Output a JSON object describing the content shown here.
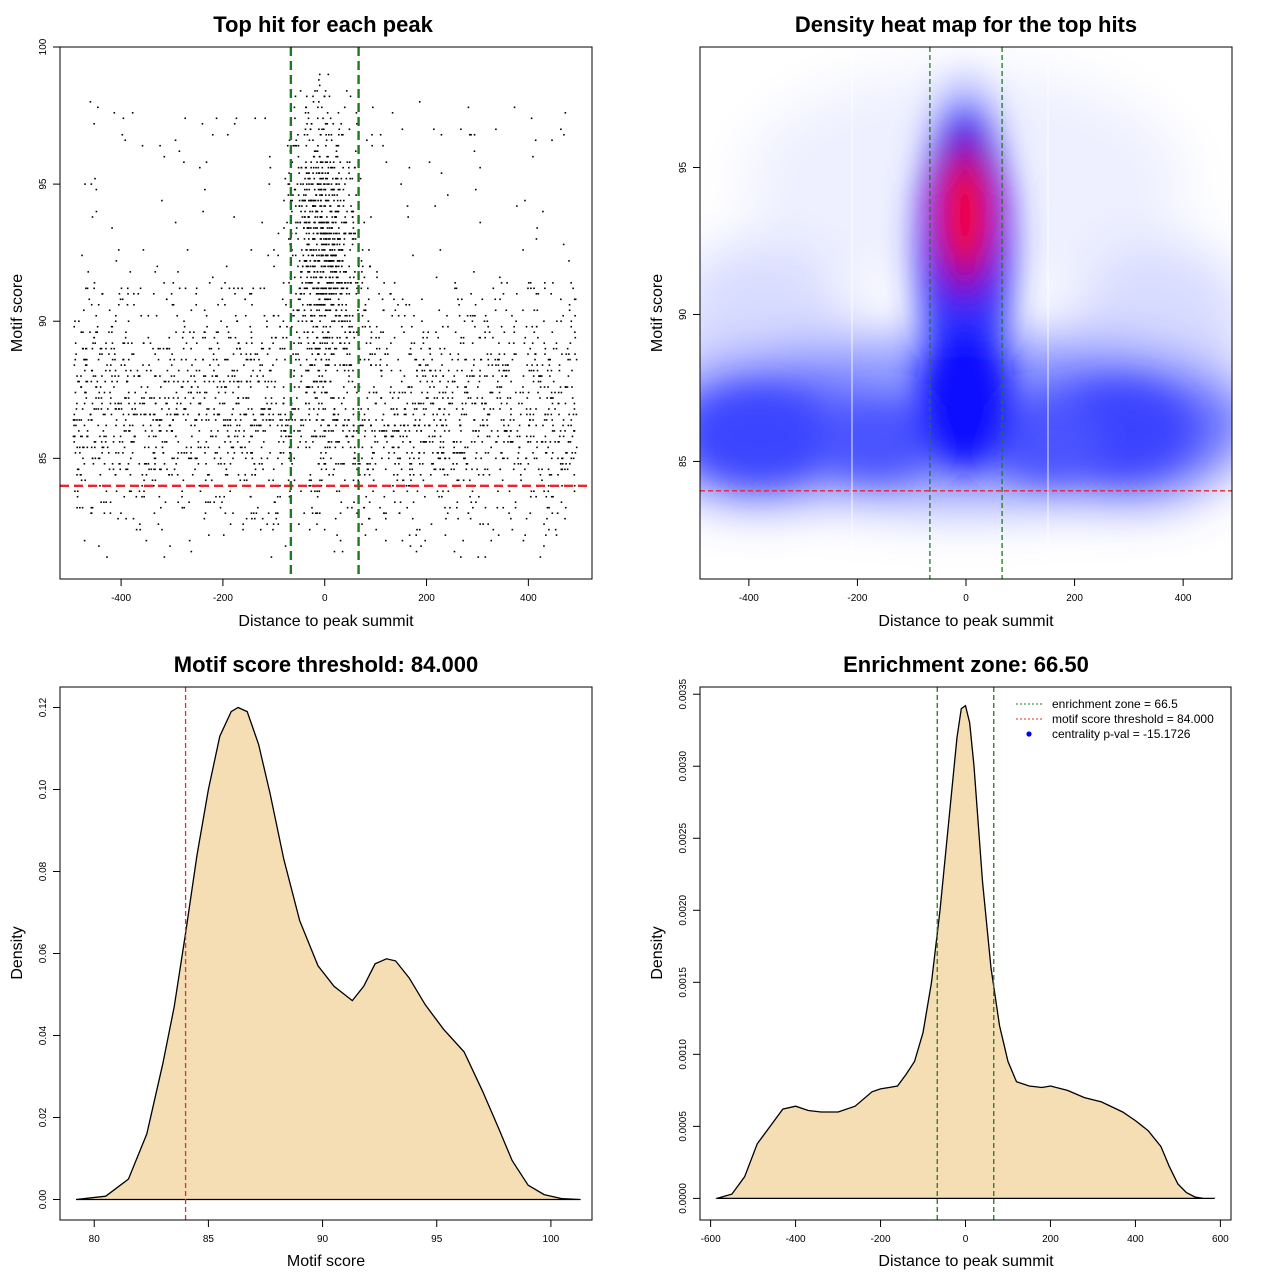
{
  "chart_data": [
    {
      "id": "scatter",
      "type": "scatter",
      "title": "Top hit for each peak",
      "xlabel": "Distance to peak summit",
      "ylabel": "Motif score",
      "xlim": [
        -520,
        525
      ],
      "ylim": [
        80.6,
        100
      ],
      "x_ticks": [
        -400,
        -200,
        0,
        200,
        400
      ],
      "x_tick_labels": [
        "-400",
        "-200",
        "0",
        "200",
        "400"
      ],
      "y_ticks": [
        85,
        90,
        95,
        100
      ],
      "y_tick_labels": [
        "85",
        "90",
        "95",
        "100"
      ],
      "points_description": "approx. 3,000 top-hit points; broad band at motif score 82-91 across -500..500 bp, dense vertical cluster at 87-98 within about ±66 bp of the summit",
      "hlines": [
        {
          "y": 84.0,
          "color": "#e8262b",
          "style": "dashed"
        }
      ],
      "vlines": [
        {
          "x": -66.5,
          "color": "#1e7a1e",
          "style": "dashed"
        },
        {
          "x": 66.5,
          "color": "#1e7a1e",
          "style": "dashed"
        }
      ]
    },
    {
      "id": "heatmap",
      "type": "heatmap",
      "title": "Density heat map for the top hits",
      "xlabel": "Distance to peak summit",
      "ylabel": "Motif score",
      "xlim": [
        -490,
        490
      ],
      "ylim": [
        81,
        99.1
      ],
      "x_ticks": [
        -400,
        -200,
        0,
        200,
        400
      ],
      "x_tick_labels": [
        "-400",
        "-200",
        "0",
        "200",
        "400"
      ],
      "y_ticks": [
        85,
        90,
        95
      ],
      "y_tick_labels": [
        "85",
        "90",
        "95"
      ],
      "colormap": [
        "#ffffff",
        "#0000ff",
        "#ff0000"
      ],
      "density_peaks": [
        {
          "x": 0,
          "y": 93.3,
          "level": "highest (red)"
        },
        {
          "x": 0,
          "y": 86.5,
          "level": "high (blue)"
        },
        {
          "x": -400,
          "y": 86,
          "level": "medium"
        },
        {
          "x": 300,
          "y": 86,
          "level": "medium"
        }
      ],
      "hlines": [
        {
          "y": 84.0,
          "color": "#e8262b",
          "style": "dashed"
        }
      ],
      "vlines": [
        {
          "x": -66.5,
          "color": "#1e7a1e",
          "style": "dashed"
        },
        {
          "x": 66.5,
          "color": "#1e7a1e",
          "style": "dashed"
        }
      ]
    },
    {
      "id": "score-density",
      "type": "area",
      "title": "Motif score threshold: 84.000",
      "xlabel": "Motif score",
      "ylabel": "Density",
      "xlim": [
        78.5,
        101.8
      ],
      "ylim": [
        -0.005,
        0.125
      ],
      "x_ticks": [
        80,
        85,
        90,
        95,
        100
      ],
      "x_tick_labels": [
        "80",
        "85",
        "90",
        "95",
        "100"
      ],
      "y_ticks": [
        0.0,
        0.02,
        0.04,
        0.06,
        0.08,
        0.1,
        0.12
      ],
      "y_tick_labels": [
        "0.00",
        "0.02",
        "0.04",
        "0.06",
        "0.08",
        "0.10",
        "0.12"
      ],
      "fill": "#f5deb3",
      "x": [
        79.2,
        80.5,
        81.5,
        82.3,
        83,
        83.5,
        84,
        84.5,
        85,
        85.5,
        86,
        86.3,
        86.7,
        87.2,
        87.7,
        88.3,
        89,
        89.8,
        90.5,
        91.3,
        91.8,
        92.3,
        92.8,
        93.2,
        93.8,
        94.5,
        95.3,
        96.2,
        97,
        97.7,
        98.3,
        99,
        99.7,
        100.5,
        101.3
      ],
      "y": [
        0.0,
        0.0008,
        0.005,
        0.016,
        0.033,
        0.047,
        0.065,
        0.084,
        0.1,
        0.113,
        0.119,
        0.12,
        0.119,
        0.111,
        0.099,
        0.083,
        0.068,
        0.057,
        0.052,
        0.0485,
        0.052,
        0.0575,
        0.0587,
        0.0582,
        0.054,
        0.0475,
        0.0415,
        0.036,
        0.0265,
        0.0175,
        0.0095,
        0.0035,
        0.0012,
        0.0002,
        0.0
      ],
      "vlines": [
        {
          "x": 84.0,
          "color": "#e8262b",
          "style": "dashed"
        }
      ]
    },
    {
      "id": "distance-density",
      "type": "area",
      "title": "Enrichment zone: 66.50",
      "xlabel": "Distance to peak summit",
      "ylabel": "Density",
      "xlim": [
        -625,
        625
      ],
      "ylim": [
        -0.00015,
        0.00355
      ],
      "x_ticks": [
        -600,
        -400,
        -200,
        0,
        200,
        400,
        600
      ],
      "x_tick_labels": [
        "-600",
        "-400",
        "-200",
        "0",
        "200",
        "400",
        "600"
      ],
      "y_ticks": [
        0.0,
        0.0005,
        0.001,
        0.0015,
        0.002,
        0.0025,
        0.003,
        0.0035
      ],
      "y_tick_labels": [
        "0.0000",
        "0.0005",
        "0.0010",
        "0.0015",
        "0.0020",
        "0.0025",
        "0.0030",
        "0.0035"
      ],
      "fill": "#f5deb3",
      "x": [
        -585,
        -550,
        -520,
        -490,
        -460,
        -430,
        -400,
        -370,
        -340,
        -300,
        -260,
        -220,
        -200,
        -180,
        -160,
        -140,
        -120,
        -100,
        -80,
        -60,
        -40,
        -20,
        -10,
        0,
        10,
        20,
        40,
        60,
        80,
        100,
        120,
        150,
        180,
        200,
        240,
        280,
        320,
        370,
        400,
        430,
        460,
        480,
        500,
        520,
        540,
        560,
        585
      ],
      "y": [
        0.0,
        3e-05,
        0.00015,
        0.00038,
        0.0005,
        0.00062,
        0.00064,
        0.00061,
        0.0006,
        0.0006,
        0.00064,
        0.00074,
        0.00076,
        0.00077,
        0.00078,
        0.00086,
        0.00095,
        0.00115,
        0.0015,
        0.002,
        0.0026,
        0.0032,
        0.0034,
        0.00342,
        0.0033,
        0.003,
        0.0022,
        0.0016,
        0.0012,
        0.00095,
        0.00081,
        0.00078,
        0.00077,
        0.00078,
        0.00075,
        0.0007,
        0.00067,
        0.0006,
        0.00054,
        0.00047,
        0.00036,
        0.00022,
        0.0001,
        4e-05,
        1e-05,
        0.0,
        0.0
      ],
      "vlines": [
        {
          "x": -66.5,
          "color": "#1e7a1e",
          "style": "dashed"
        },
        {
          "x": 66.5,
          "color": "#1e7a1e",
          "style": "dashed"
        }
      ],
      "legend": {
        "position": "top-right",
        "entries": [
          {
            "label": "enrichment zone = 66.5",
            "symbol": "dotted-line",
            "color": "#1e7a1e"
          },
          {
            "label": "motif score threshold = 84.000",
            "symbol": "dotted-line",
            "color": "#e8262b"
          },
          {
            "label": "centrality p-val = -15.1726",
            "symbol": "point",
            "color": "#0000ff"
          }
        ]
      }
    }
  ]
}
